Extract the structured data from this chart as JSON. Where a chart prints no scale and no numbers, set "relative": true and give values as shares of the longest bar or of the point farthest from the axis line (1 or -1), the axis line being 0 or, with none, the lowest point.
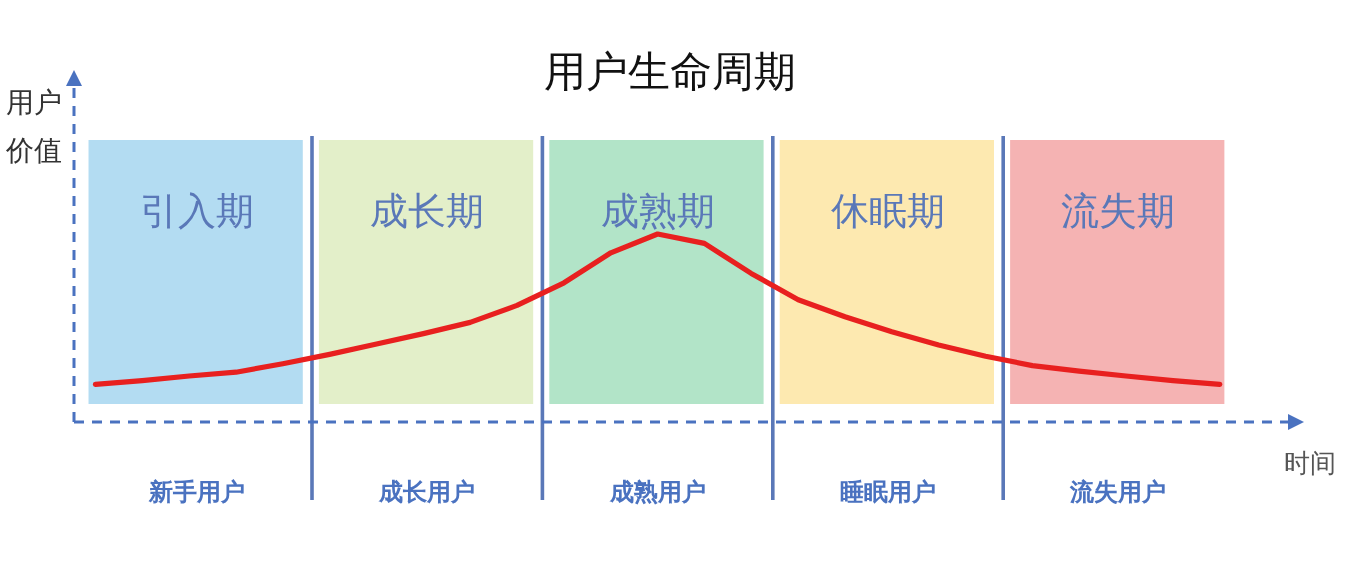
{
  "chart_data": {
    "type": "line",
    "title": "用户生命周期",
    "ylabel": "用户价值",
    "xlabel": "时间",
    "relative": true,
    "grid": false,
    "marker": "none",
    "line_style": "solid",
    "categories": [
      null,
      null,
      null,
      null,
      null,
      null,
      null,
      null,
      null,
      null,
      null,
      null,
      null,
      null,
      null,
      null,
      null,
      null,
      null,
      null,
      null,
      null,
      null,
      null,
      null
    ],
    "series": [
      {
        "color": "#e8201f",
        "values": [
          0.2,
          0.22,
          0.245,
          0.265,
          0.31,
          0.36,
          0.415,
          0.47,
          0.53,
          0.62,
          0.74,
          0.9,
          1,
          0.95,
          0.79,
          0.65,
          0.56,
          0.48,
          0.41,
          0.35,
          0.3,
          0.27,
          0.245,
          0.22,
          0.2
        ]
      }
    ],
    "annotations": [
      "引入期",
      "成长期",
      "成熟期",
      "休眠期",
      "流失期",
      "新手用户",
      "成长用户",
      "成熟用户",
      "睡眠用户",
      "流失用户"
    ]
  }
}
